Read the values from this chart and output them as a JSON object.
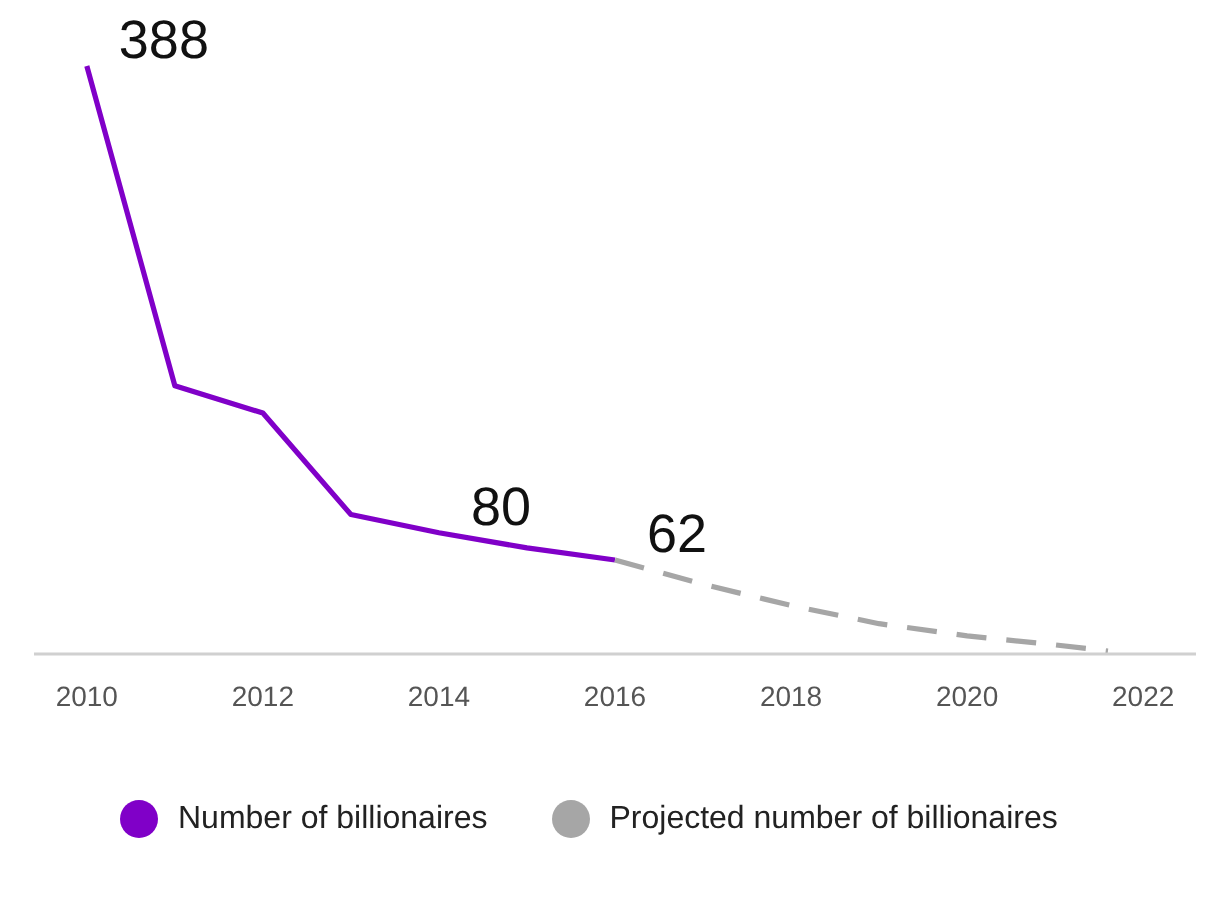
{
  "chart_data": {
    "type": "line",
    "x": [
      2010,
      2011,
      2012,
      2013,
      2014,
      2015,
      2016
    ],
    "xlim": [
      2009.4,
      2022.6
    ],
    "xticks": [
      2010,
      2012,
      2014,
      2016,
      2018,
      2020,
      2022
    ],
    "marker": "none",
    "legend": "bottom",
    "series": [
      {
        "name": "Number of billionaires",
        "color": "#8000c8",
        "values": [
          388,
          177,
          159,
          92,
          80,
          70,
          62
        ],
        "value_labels": [
          "388",
          null,
          null,
          null,
          "80",
          null,
          "62"
        ],
        "line_style": "solid"
      },
      {
        "name": "Projected number of billionaires",
        "color": "#a6a6a6",
        "x": [
          2016,
          2017,
          2018,
          2019,
          2020,
          2021,
          2021.6
        ],
        "values": [
          62,
          46,
          32,
          20,
          12,
          6,
          2
        ],
        "line_style": "dashed"
      }
    ]
  }
}
